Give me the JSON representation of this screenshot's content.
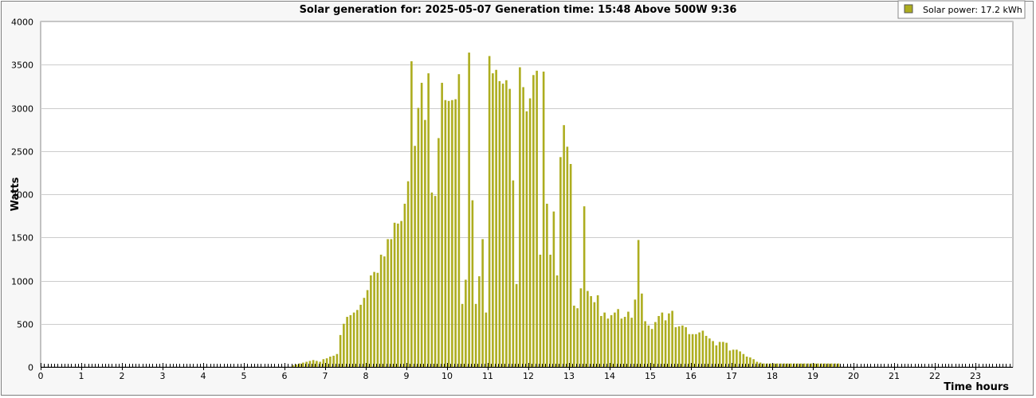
{
  "chart_data": {
    "type": "bar",
    "title": "Solar generation for: 2025-05-07 Generation time: 15:48 Above 500W 9:36",
    "xlabel": "Time hours",
    "ylabel": "Watts",
    "xlim": [
      0,
      24
    ],
    "ylim": [
      0,
      4000
    ],
    "x_ticks": [
      "0",
      "1",
      "2",
      "3",
      "4",
      "5",
      "6",
      "7",
      "8",
      "9",
      "10",
      "11",
      "12",
      "13",
      "14",
      "15",
      "16",
      "17",
      "18",
      "19",
      "20",
      "21",
      "22",
      "23"
    ],
    "y_ticks": [
      "0",
      "500",
      "1000",
      "1500",
      "2000",
      "2500",
      "3000",
      "3500",
      "4000"
    ],
    "grid": true,
    "legend_position": "top-right",
    "interval_minutes": 5,
    "start_hour": 0,
    "series": [
      {
        "name": "Solar power: 17.2 kWh",
        "color": "#adad1f",
        "values": [
          0,
          0,
          0,
          0,
          0,
          0,
          0,
          0,
          0,
          0,
          0,
          0,
          0,
          0,
          0,
          0,
          0,
          0,
          0,
          0,
          0,
          0,
          0,
          0,
          0,
          0,
          0,
          0,
          0,
          0,
          0,
          0,
          0,
          0,
          0,
          0,
          0,
          0,
          0,
          0,
          0,
          0,
          0,
          0,
          0,
          0,
          0,
          0,
          0,
          0,
          0,
          0,
          0,
          0,
          0,
          0,
          0,
          0,
          0,
          0,
          0,
          0,
          0,
          0,
          0,
          0,
          0,
          0,
          0,
          0,
          0,
          0,
          0,
          0,
          20,
          30,
          40,
          50,
          60,
          70,
          80,
          70,
          60,
          90,
          100,
          120,
          130,
          150,
          370,
          500,
          580,
          600,
          630,
          660,
          720,
          800,
          890,
          1060,
          1100,
          1090,
          1300,
          1280,
          1480,
          1480,
          1670,
          1660,
          1690,
          1890,
          2150,
          3540,
          2560,
          3000,
          3290,
          2860,
          3400,
          2020,
          1980,
          2650,
          3290,
          3090,
          3080,
          3090,
          3100,
          3390,
          730,
          1010,
          3640,
          1930,
          730,
          1050,
          1480,
          630,
          3600,
          3400,
          3440,
          3310,
          3280,
          3320,
          3220,
          2160,
          960,
          3470,
          3240,
          2960,
          3110,
          3380,
          3430,
          1300,
          3420,
          1890,
          1300,
          1800,
          1060,
          2430,
          2800,
          2550,
          2350,
          710,
          680,
          910,
          1860,
          880,
          820,
          750,
          830,
          590,
          630,
          560,
          600,
          630,
          670,
          560,
          580,
          640,
          570,
          780,
          1470,
          850,
          530,
          480,
          440,
          520,
          590,
          630,
          540,
          620,
          650,
          460,
          470,
          480,
          460,
          380,
          380,
          380,
          400,
          420,
          360,
          330,
          300,
          250,
          290,
          290,
          280,
          190,
          200,
          200,
          180,
          150,
          120,
          110,
          90,
          60,
          50,
          40,
          40,
          40,
          40,
          40,
          40,
          40,
          40,
          40,
          40,
          40,
          40,
          40,
          40,
          40,
          40,
          40,
          40,
          40,
          40,
          40,
          40,
          40,
          0,
          0,
          0,
          0,
          0,
          0,
          0,
          0,
          0,
          0,
          0,
          0,
          0,
          0,
          0,
          0,
          0,
          0,
          0,
          0,
          0,
          0,
          0,
          0,
          0,
          0,
          0,
          0
        ]
      }
    ]
  }
}
